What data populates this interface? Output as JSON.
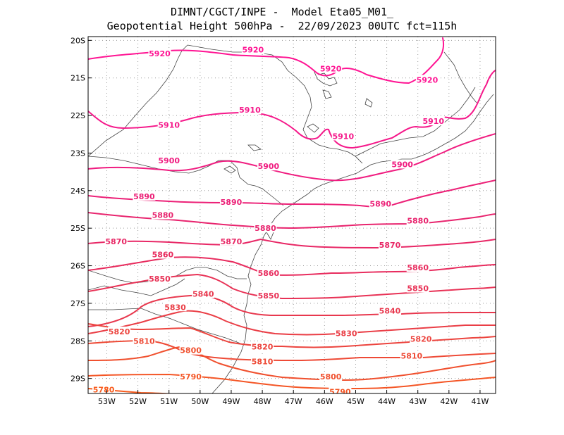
{
  "title": {
    "line1": "DIMNT/CGCT/INPE -  Model Eta05_M01_",
    "line2": "Geopotential Height 500hPa -  22/09/2023 00UTC fct=115h"
  },
  "map": {
    "lon_range": [
      -53.6,
      -40.5
    ],
    "lat_range": [
      -29.4,
      -19.9
    ],
    "lat_ticks": [
      "20S",
      "21S",
      "22S",
      "23S",
      "24S",
      "25S",
      "26S",
      "27S",
      "28S",
      "29S"
    ],
    "lon_ticks": [
      "53W",
      "52W",
      "51W",
      "50W",
      "49W",
      "48W",
      "47W",
      "46W",
      "45W",
      "44W",
      "43W",
      "42W",
      "41W"
    ],
    "grid_color": "#9a9a9a",
    "coast_color": "#444444"
  },
  "contours": [
    {
      "value": "5920",
      "color": "#ff1493",
      "labels": [
        {
          "lon": -51.3,
          "lat": -20.35
        },
        {
          "lon": -48.3,
          "lat": -20.25
        },
        {
          "lon": -45.8,
          "lat": -20.75
        },
        {
          "lon": -42.7,
          "lat": -21.05
        }
      ]
    },
    {
      "value": "5910",
      "color": "#f5188a",
      "labels": [
        {
          "lon": -51.0,
          "lat": -22.25
        },
        {
          "lon": -48.4,
          "lat": -21.85
        },
        {
          "lon": -45.4,
          "lat": -22.55
        },
        {
          "lon": -42.5,
          "lat": -22.15
        }
      ]
    },
    {
      "value": "5900",
      "color": "#f01c80",
      "labels": [
        {
          "lon": -51.0,
          "lat": -23.2
        },
        {
          "lon": -47.8,
          "lat": -23.35
        },
        {
          "lon": -43.5,
          "lat": -23.3
        }
      ]
    },
    {
      "value": "5890",
      "color": "#ec2077",
      "labels": [
        {
          "lon": -51.8,
          "lat": -24.15
        },
        {
          "lon": -49.0,
          "lat": -24.3
        },
        {
          "lon": -44.2,
          "lat": -24.35
        }
      ]
    },
    {
      "value": "5880",
      "color": "#e8246e",
      "labels": [
        {
          "lon": -51.2,
          "lat": -24.65
        },
        {
          "lon": -47.9,
          "lat": -25.0
        },
        {
          "lon": -43.0,
          "lat": -24.8
        }
      ]
    },
    {
      "value": "5870",
      "color": "#e82866",
      "labels": [
        {
          "lon": -52.7,
          "lat": -25.35
        },
        {
          "lon": -49.0,
          "lat": -25.35
        },
        {
          "lon": -43.9,
          "lat": -25.45
        }
      ]
    },
    {
      "value": "5860",
      "color": "#e82c5e",
      "labels": [
        {
          "lon": -51.2,
          "lat": -25.7
        },
        {
          "lon": -47.8,
          "lat": -26.2
        },
        {
          "lon": -43.0,
          "lat": -26.05
        }
      ]
    },
    {
      "value": "5850",
      "color": "#e83256",
      "labels": [
        {
          "lon": -51.3,
          "lat": -26.35
        },
        {
          "lon": -47.8,
          "lat": -26.8
        },
        {
          "lon": -43.0,
          "lat": -26.6
        }
      ]
    },
    {
      "value": "5840",
      "color": "#e8384e",
      "labels": [
        {
          "lon": -49.9,
          "lat": -26.75
        },
        {
          "lon": -43.9,
          "lat": -27.2
        }
      ]
    },
    {
      "value": "5830",
      "color": "#ea3e46",
      "labels": [
        {
          "lon": -50.8,
          "lat": -27.1
        },
        {
          "lon": -45.3,
          "lat": -27.8
        }
      ]
    },
    {
      "value": "5820",
      "color": "#ec443e",
      "labels": [
        {
          "lon": -52.6,
          "lat": -27.75
        },
        {
          "lon": -48.0,
          "lat": -28.15
        },
        {
          "lon": -42.9,
          "lat": -27.95
        }
      ]
    },
    {
      "value": "5810",
      "color": "#ee4a36",
      "labels": [
        {
          "lon": -51.8,
          "lat": -28.0
        },
        {
          "lon": -48.0,
          "lat": -28.55
        },
        {
          "lon": -43.2,
          "lat": -28.4
        }
      ]
    },
    {
      "value": "5800",
      "color": "#f0502e",
      "labels": [
        {
          "lon": -50.3,
          "lat": -28.25
        },
        {
          "lon": -45.8,
          "lat": -28.95
        }
      ]
    },
    {
      "value": "5790",
      "color": "#f45626",
      "labels": [
        {
          "lon": -50.3,
          "lat": -28.95
        },
        {
          "lon": -45.5,
          "lat": -29.35
        }
      ]
    },
    {
      "value": "5780",
      "color": "#f85c1e",
      "labels": [
        {
          "lon": -53.1,
          "lat": -29.3
        }
      ]
    }
  ]
}
